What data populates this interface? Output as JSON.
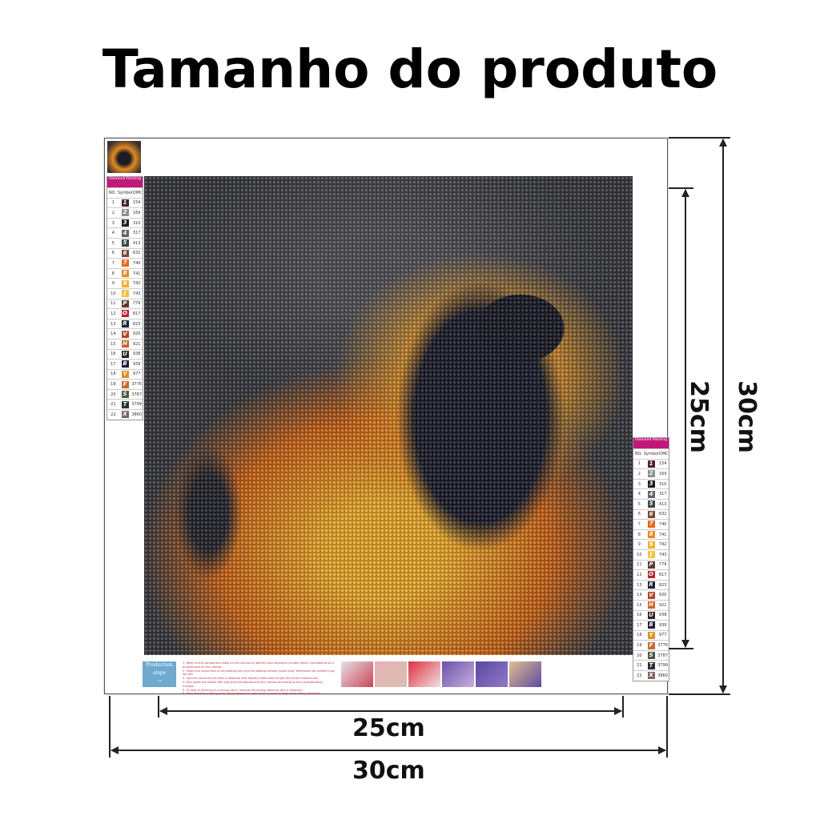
{
  "title": "Tamanho do produto",
  "legend": {
    "header": "Diamond Painting",
    "columns": [
      "NO.",
      "Symbol",
      "DMC"
    ],
    "rows": [
      {
        "no": "1",
        "symbol": "1",
        "dmc": "154",
        "color": "#4a2435"
      },
      {
        "no": "2",
        "symbol": "2",
        "dmc": "169",
        "color": "#8d9194"
      },
      {
        "no": "3",
        "symbol": "3",
        "dmc": "310",
        "color": "#1b1b1b"
      },
      {
        "no": "4",
        "symbol": "4",
        "dmc": "317",
        "color": "#5e6670"
      },
      {
        "no": "5",
        "symbol": "5",
        "dmc": "413",
        "color": "#3c4540"
      },
      {
        "no": "6",
        "symbol": "6",
        "dmc": "632",
        "color": "#7a4a30"
      },
      {
        "no": "7",
        "symbol": "7",
        "dmc": "740",
        "color": "#e36a18"
      },
      {
        "no": "8",
        "symbol": "8",
        "dmc": "741",
        "color": "#e88a20"
      },
      {
        "no": "9",
        "symbol": "9",
        "dmc": "742",
        "color": "#efb22a"
      },
      {
        "no": "10",
        "symbol": "J",
        "dmc": "743",
        "color": "#f0c23a"
      },
      {
        "no": "11",
        "symbol": "P",
        "dmc": "779",
        "color": "#5a3a30"
      },
      {
        "no": "12",
        "symbol": "O",
        "dmc": "817",
        "color": "#b8242a"
      },
      {
        "no": "13",
        "symbol": "R",
        "dmc": "823",
        "color": "#1c2238"
      },
      {
        "no": "14",
        "symbol": "V",
        "dmc": "920",
        "color": "#b24a2a"
      },
      {
        "no": "15",
        "symbol": "H",
        "dmc": "921",
        "color": "#c8622a"
      },
      {
        "no": "16",
        "symbol": "U",
        "dmc": "938",
        "color": "#2e2420"
      },
      {
        "no": "17",
        "symbol": "B",
        "dmc": "939",
        "color": "#1a1f33"
      },
      {
        "no": "18",
        "symbol": "Y",
        "dmc": "977",
        "color": "#d8922c"
      },
      {
        "no": "19",
        "symbol": "F",
        "dmc": "3776",
        "color": "#c86a30"
      },
      {
        "no": "20",
        "symbol": "S",
        "dmc": "3787",
        "color": "#4e5a3e"
      },
      {
        "no": "21",
        "symbol": "T",
        "dmc": "3799",
        "color": "#2e3034"
      },
      {
        "no": "22",
        "symbol": "X",
        "dmc": "3860",
        "color": "#7a6660"
      }
    ]
  },
  "steps": {
    "label": "Production steps",
    "instructions": [
      "1. Refer to the comparison table on the canvas to identify each diamond number which corresponds to a printed area on the canvas.",
      "2. Insert the round end of the dotting pen into the dotting cement (push hard, otherwise the cement may fall off).",
      "3. Use the round end to stick a diamond and slightly press down to get the entire cement out.",
      "4. Tear apart the partial film and stick the diamond to the canvas according to the corresponding number.",
      "5. In case of sticking to a wrong place, remove the wrong diamond with a tweezers.",
      "6. After finished, slightly press these diamonds with hand or book to keep them firmly attached."
    ]
  },
  "dimensions": {
    "outer_width": "30cm",
    "inner_width": "25cm",
    "outer_height": "30cm",
    "inner_height": "25cm"
  }
}
